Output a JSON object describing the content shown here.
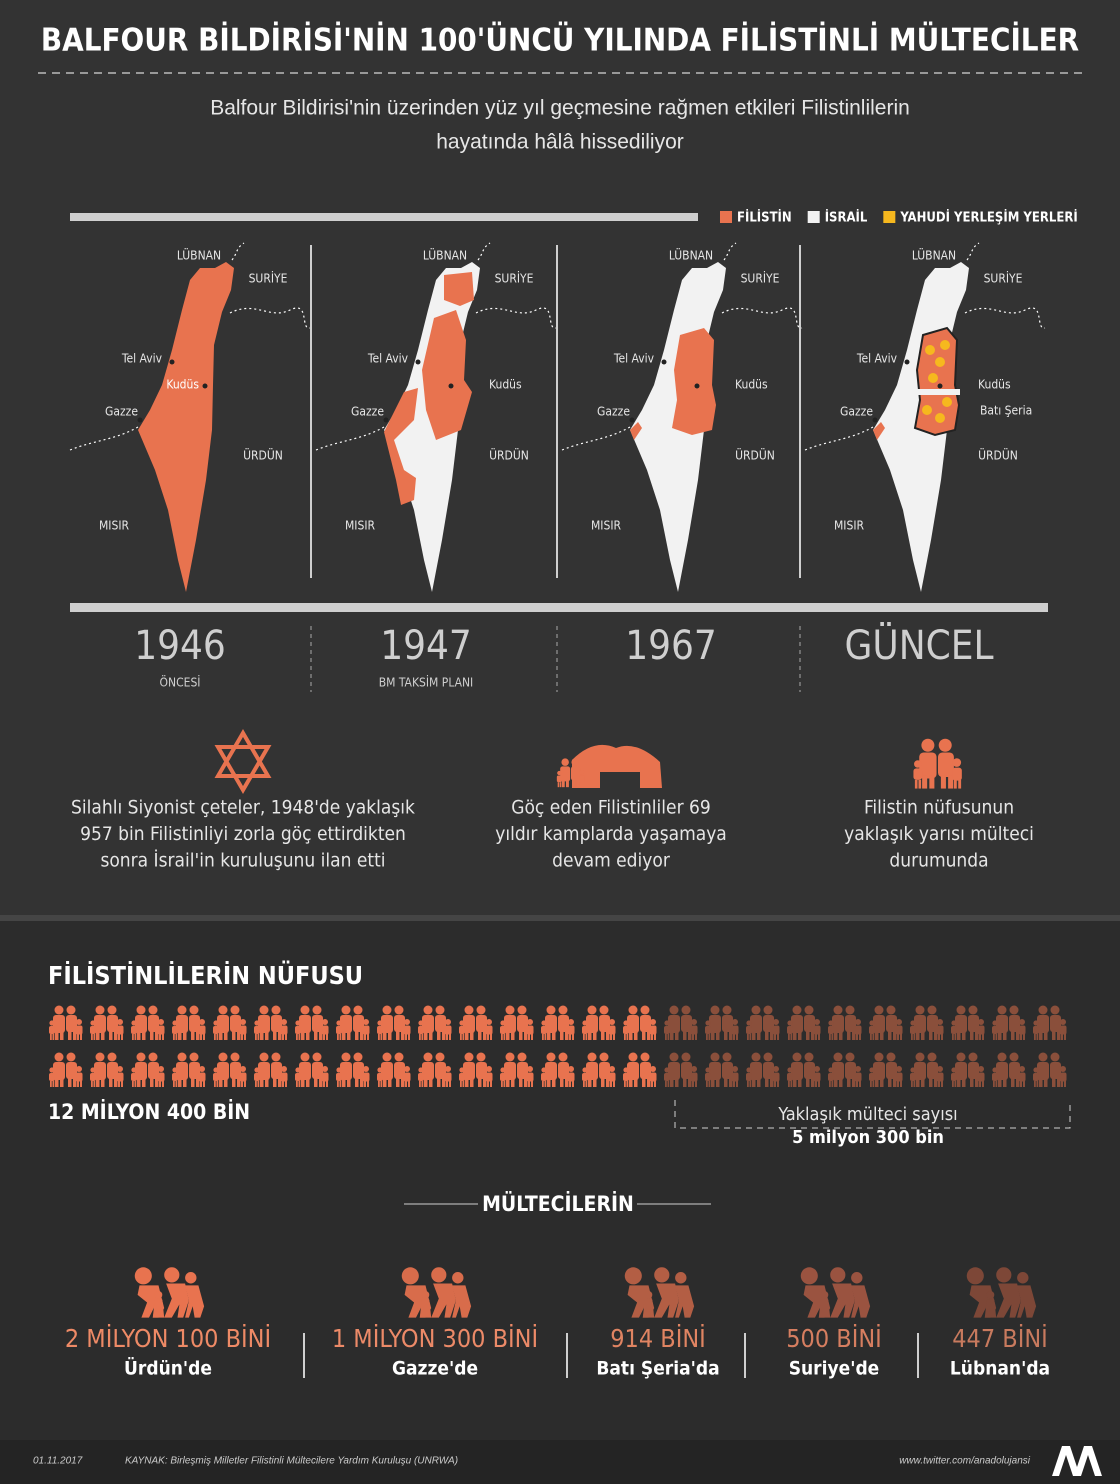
{
  "header": {
    "title": "BALFOUR BİLDİRİSİ'NİN 100'ÜNCÜ YILINDA FİLİSTİNLİ MÜLTECİLER",
    "subtitle_lines": [
      "Balfour Bildirisi'nin üzerinden yüz yıl geçmesine rağmen etkileri Filistinlilerin",
      "hayatında hâlâ hissediliyor"
    ]
  },
  "legend": [
    {
      "label": "FİLİSTİN",
      "color": "#e8734f"
    },
    {
      "label": "İSRAİL",
      "color": "#f2f2f2"
    },
    {
      "label": "YAHUDİ YERLEŞİM YERLERİ",
      "color": "#f6b81e"
    }
  ],
  "maps": [
    {
      "year": "1946",
      "caption": "ÖNCESİ",
      "labels": [
        "LÜBNAN",
        "SURİYE",
        "Tel Aviv",
        "Kudüs",
        "Gazze",
        "ÜRDÜN",
        "MISIR"
      ]
    },
    {
      "year": "1947",
      "caption": "BM TAKSİM PLANI",
      "labels": [
        "LÜBNAN",
        "SURİYE",
        "Tel Aviv",
        "Kudüs",
        "Gazze",
        "ÜRDÜN",
        "MISIR"
      ]
    },
    {
      "year": "1967",
      "caption": null,
      "labels": [
        "LÜBNAN",
        "SURİYE",
        "Tel Aviv",
        "Kudüs",
        "Gazze",
        "ÜRDÜN",
        "MISIR"
      ]
    },
    {
      "year": "GÜNCEL",
      "caption": null,
      "labels": [
        "LÜBNAN",
        "SURİYE",
        "Tel Aviv",
        "Kudüs",
        "Gazze",
        "ÜRDÜN",
        "MISIR",
        "Batı Şeria"
      ]
    }
  ],
  "facts": [
    {
      "lines": [
        "Silahlı Siyonist çeteler, 1948'de yaklaşık",
        "957 bin Filistinliyi zorla göç ettirdikten",
        "sonra İsrail'in kuruluşunu ilan etti"
      ]
    },
    {
      "lines": [
        "Göç eden Filistinliler 69",
        "yıldır kamplarda yaşamaya",
        "devam ediyor"
      ]
    },
    {
      "lines": [
        "Filistin nüfusunun",
        "yaklaşık yarısı mülteci",
        "durumunda"
      ]
    }
  ],
  "population": {
    "title": "FİLİSTİNLİLERİN NÜFUSU",
    "total": "12 MİLYON 400 BİN",
    "refugee_note": "Yaklaşık mülteci sayısı",
    "refugee_total": "5 milyon 300 bin"
  },
  "refugees": {
    "title": "MÜLTECİLERİN",
    "items": [
      {
        "amount": "2 MİLYON 100 BİNİ",
        "place": "Ürdün'de"
      },
      {
        "amount": "1 MİLYON 300 BİNİ",
        "place": "Gazze'de"
      },
      {
        "amount": "914 BİNİ",
        "place": "Batı Şeria'da"
      },
      {
        "amount": "500 BİNİ",
        "place": "Suriye'de"
      },
      {
        "amount": "447 BİNİ",
        "place": "Lübnan'da"
      }
    ]
  },
  "footer": {
    "date": "01.11.2017",
    "source": "KAYNAK: Birleşmiş Milletler Filistinli Mültecilere Yardım Kuruluşu (UNRWA)",
    "twitter": "www.twitter.com/anadolujansi"
  }
}
